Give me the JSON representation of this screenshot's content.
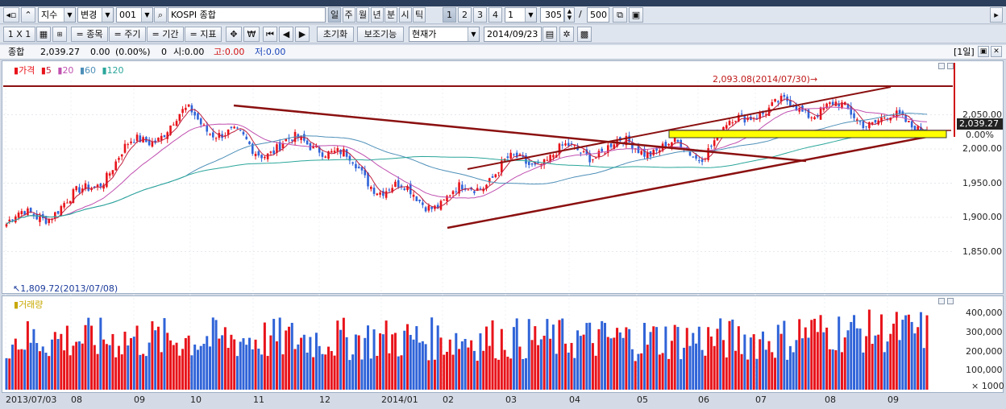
{
  "window": {
    "title": ""
  },
  "toolbar1": {
    "type_select": "지수",
    "change_select": "변경",
    "code": "001",
    "name": "KOSPI 종합",
    "periods": [
      "일",
      "주",
      "월",
      "년",
      "분",
      "시",
      "틱"
    ],
    "numbers": [
      "1",
      "2",
      "3",
      "4"
    ],
    "interval": "1",
    "count": "305",
    "slash": "/",
    "max": "500"
  },
  "toolbar2": {
    "layout": "1 X 1",
    "item": "= 종목",
    "cycle": "= 주기",
    "period": "= 기간",
    "indicator": "= 지표",
    "reset": "초기화",
    "aux": "보조기능",
    "price_mode": "현재가",
    "date": "2014/09/23"
  },
  "status_bar": {
    "name": "종합",
    "price": "2,039.27",
    "change": "0.00",
    "pct": "(0.00%)",
    "volume": "0",
    "open_label": "시:0.00",
    "high_label": "고:0.00",
    "low_label": "저:0.00",
    "period_badge": "[1일]"
  },
  "price_panel": {
    "legend": {
      "price": "가격",
      "ma5": "5",
      "ma20": "20",
      "ma60": "60",
      "ma120": "120"
    },
    "high_annotation": "2,093.08(2014/07/30)",
    "low_annotation": "1,809.72(2013/07/08)",
    "current_price_tag": "2,039.27",
    "pct_label": "0.00%",
    "y_ticks": [
      "2,050.00",
      "2,000.00",
      "1,950.00",
      "1,900.00",
      "1,850.00"
    ]
  },
  "volume_panel": {
    "legend": "거래량",
    "y_ticks": [
      "400,000",
      "300,000",
      "200,000",
      "100,000"
    ],
    "unit": "× 1000"
  },
  "x_axis": [
    "2013/07/03",
    "08",
    "09",
    "10",
    "11",
    "12",
    "2014/01",
    "02",
    "03",
    "04",
    "05",
    "06",
    "07",
    "08",
    "09"
  ],
  "colors": {
    "up": "#e8131a",
    "down": "#2f63d8",
    "ma5": "#c02040",
    "ma20": "#c050b0",
    "ma60": "#4d8fb8",
    "ma120": "#2aa69a",
    "trend": "#8b1010",
    "highlight": "#ffff00"
  },
  "chart_data": {
    "type": "candlestick",
    "title": "KOSPI 종합",
    "xlabel": "",
    "ylabel": "",
    "ylim": [
      1800,
      2100
    ],
    "high": {
      "value": 2093.08,
      "date": "2014/07/30"
    },
    "low": {
      "value": 1809.72,
      "date": "2013/07/08"
    },
    "last_close": 2039.27,
    "approx_close_by_month": [
      {
        "x": "2013/07",
        "close": 1890
      },
      {
        "x": "2013/08",
        "close": 1920
      },
      {
        "x": "2013/09",
        "close": 2005
      },
      {
        "x": "2013/10",
        "close": 2050
      },
      {
        "x": "2013/11",
        "close": 2000
      },
      {
        "x": "2013/12",
        "close": 2010
      },
      {
        "x": "2014/01",
        "close": 1945
      },
      {
        "x": "2014/02",
        "close": 1920
      },
      {
        "x": "2014/03",
        "close": 1975
      },
      {
        "x": "2014/04",
        "close": 1995
      },
      {
        "x": "2014/05",
        "close": 2005
      },
      {
        "x": "2014/06",
        "close": 1995
      },
      {
        "x": "2014/07",
        "close": 2060
      },
      {
        "x": "2014/08",
        "close": 2060
      },
      {
        "x": "2014/09",
        "close": 2039.27
      }
    ],
    "volume_range_thousands": [
      150000,
      430000
    ]
  }
}
